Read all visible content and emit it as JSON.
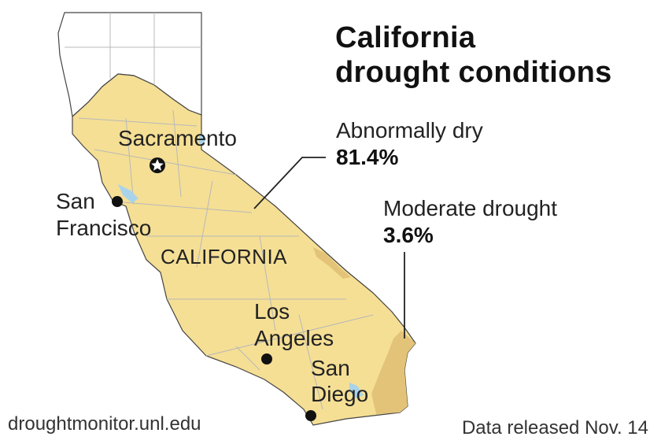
{
  "title": {
    "line1": "California",
    "line2": "drought conditions"
  },
  "legend": {
    "abnormally_dry": {
      "label": "Abnormally dry",
      "value": "81.4%",
      "color": "#f5df95"
    },
    "moderate_drought": {
      "label": "Moderate drought",
      "value": "3.6%",
      "color": "#e3c377"
    }
  },
  "map_labels": {
    "state": "CALIFORNIA",
    "cities": {
      "sacramento": "Sacramento",
      "san_francisco_1": "San",
      "san_francisco_2": "Francisco",
      "los_angeles_1": "Los",
      "los_angeles_2": "Angeles",
      "san_diego_1": "San",
      "san_diego_2": "Diego"
    }
  },
  "footer": {
    "source": "droughtmonitor.unl.edu",
    "date": "Data released Nov. 14"
  },
  "colors": {
    "no_drought": "#ffffff",
    "county_lines": "#b8b8b8",
    "water": "#a9d3ea",
    "leader_lines": "#222222"
  }
}
